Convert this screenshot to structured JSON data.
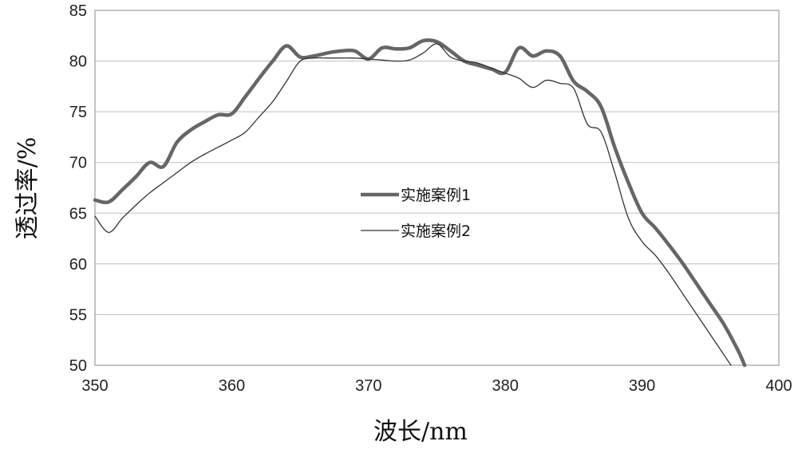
{
  "chart_data": {
    "type": "line",
    "title": "",
    "xlabel": "波长/nm",
    "ylabel": "透过率/%",
    "xlim": [
      350,
      400
    ],
    "ylim": [
      50,
      85
    ],
    "xticks": [
      350,
      360,
      370,
      380,
      390,
      400
    ],
    "yticks": [
      50,
      55,
      60,
      65,
      70,
      75,
      80,
      85
    ],
    "grid": "horizontal",
    "legend": "center",
    "series": [
      {
        "name": "实施案例1",
        "color": "#666666",
        "x": [
          350,
          351,
          352,
          353,
          354,
          355,
          356,
          357,
          358,
          359,
          360,
          361,
          362,
          363,
          364,
          365,
          366,
          367,
          368,
          369,
          370,
          371,
          372,
          373,
          374,
          375,
          376,
          377,
          378,
          379,
          380,
          381,
          382,
          383,
          384,
          385,
          386,
          387,
          388,
          389,
          390,
          391,
          392,
          393,
          394,
          395,
          396,
          397,
          397.5
        ],
        "y": [
          66.3,
          66.1,
          67.3,
          68.6,
          70.0,
          69.6,
          72.0,
          73.2,
          74.0,
          74.7,
          74.8,
          76.5,
          78.3,
          80.0,
          81.5,
          80.4,
          80.5,
          80.8,
          81.0,
          81.0,
          80.2,
          81.3,
          81.2,
          81.3,
          82.0,
          81.9,
          81.0,
          80.0,
          79.6,
          79.2,
          78.9,
          81.3,
          80.5,
          81.0,
          80.5,
          78.0,
          77.0,
          75.5,
          71.5,
          68.0,
          65.0,
          63.5,
          61.8,
          60.0,
          58.0,
          56.0,
          54.0,
          51.5,
          50.0
        ]
      },
      {
        "name": "实施案例2",
        "color": "#333333",
        "x": [
          350,
          351,
          352,
          353,
          354,
          355,
          356,
          357,
          358,
          359,
          360,
          361,
          362,
          363,
          364,
          365,
          366,
          367,
          368,
          369,
          370,
          371,
          372,
          373,
          374,
          375,
          376,
          377,
          378,
          379,
          380,
          381,
          382,
          383,
          384,
          385,
          386,
          387,
          388,
          389,
          390,
          391,
          392,
          393,
          394,
          395,
          396,
          396.5
        ],
        "y": [
          64.7,
          63.1,
          64.5,
          65.8,
          67.0,
          68.0,
          69.0,
          70.0,
          70.8,
          71.5,
          72.2,
          73.0,
          74.5,
          76.0,
          78.0,
          80.0,
          80.3,
          80.3,
          80.3,
          80.3,
          80.2,
          80.1,
          80.0,
          80.1,
          80.8,
          81.7,
          80.4,
          80.0,
          79.8,
          79.3,
          78.8,
          78.3,
          77.4,
          78.1,
          77.8,
          77.3,
          73.8,
          73.0,
          69.0,
          64.5,
          62.2,
          60.8,
          59.0,
          57.0,
          55.0,
          53.0,
          51.0,
          50.0
        ]
      }
    ]
  }
}
